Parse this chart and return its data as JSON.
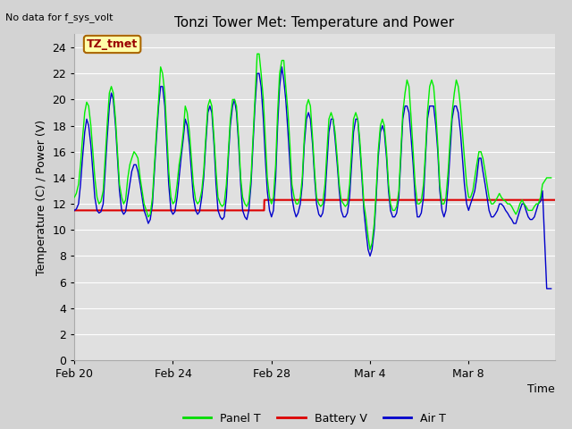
{
  "title": "Tonzi Tower Met: Temperature and Power",
  "top_left_note": "No data for f_sys_volt",
  "ylabel": "Temperature (C) / Power (V)",
  "xlabel": "Time",
  "xlim_days": [
    0,
    19.5
  ],
  "ylim": [
    0,
    25
  ],
  "yticks": [
    0,
    2,
    4,
    6,
    8,
    10,
    12,
    14,
    16,
    18,
    20,
    22,
    24
  ],
  "xtick_labels": [
    "Feb 20",
    "Feb 24",
    "Feb 28",
    "Mar 4",
    "Mar 8"
  ],
  "xtick_positions": [
    0,
    4,
    8,
    12,
    16
  ],
  "label_box_text": "TZ_tmet",
  "legend_entries": [
    "Panel T",
    "Battery V",
    "Air T"
  ],
  "legend_colors": [
    "#00dd00",
    "#dd0000",
    "#0000cc"
  ],
  "fig_facecolor": "#d3d3d3",
  "plot_facecolor": "#e8e8e8",
  "panel_t_color": "#00ee00",
  "battery_v_color": "#dd0000",
  "air_t_color": "#0000cc",
  "panel_t": {
    "x": [
      0.0,
      0.08,
      0.17,
      0.25,
      0.33,
      0.42,
      0.5,
      0.58,
      0.67,
      0.75,
      0.83,
      0.92,
      1.0,
      1.08,
      1.17,
      1.25,
      1.33,
      1.42,
      1.5,
      1.58,
      1.67,
      1.75,
      1.83,
      1.92,
      2.0,
      2.08,
      2.17,
      2.25,
      2.33,
      2.42,
      2.5,
      2.58,
      2.67,
      2.75,
      2.83,
      2.92,
      3.0,
      3.08,
      3.17,
      3.25,
      3.33,
      3.42,
      3.5,
      3.58,
      3.67,
      3.75,
      3.83,
      3.92,
      4.0,
      4.08,
      4.17,
      4.25,
      4.33,
      4.42,
      4.5,
      4.58,
      4.67,
      4.75,
      4.83,
      4.92,
      5.0,
      5.08,
      5.17,
      5.25,
      5.33,
      5.42,
      5.5,
      5.58,
      5.67,
      5.75,
      5.83,
      5.92,
      6.0,
      6.08,
      6.17,
      6.25,
      6.33,
      6.42,
      6.5,
      6.58,
      6.67,
      6.75,
      6.83,
      6.92,
      7.0,
      7.08,
      7.17,
      7.25,
      7.33,
      7.42,
      7.5,
      7.58,
      7.67,
      7.75,
      7.83,
      7.92,
      8.0,
      8.08,
      8.17,
      8.25,
      8.33,
      8.42,
      8.5,
      8.58,
      8.67,
      8.75,
      8.83,
      8.92,
      9.0,
      9.08,
      9.17,
      9.25,
      9.33,
      9.42,
      9.5,
      9.58,
      9.67,
      9.75,
      9.83,
      9.92,
      10.0,
      10.08,
      10.17,
      10.25,
      10.33,
      10.42,
      10.5,
      10.58,
      10.67,
      10.75,
      10.83,
      10.92,
      11.0,
      11.08,
      11.17,
      11.25,
      11.33,
      11.42,
      11.5,
      11.58,
      11.67,
      11.75,
      11.83,
      11.92,
      12.0,
      12.08,
      12.17,
      12.25,
      12.33,
      12.42,
      12.5,
      12.58,
      12.67,
      12.75,
      12.83,
      12.92,
      13.0,
      13.08,
      13.17,
      13.25,
      13.33,
      13.42,
      13.5,
      13.58,
      13.67,
      13.75,
      13.83,
      13.92,
      14.0,
      14.08,
      14.17,
      14.25,
      14.33,
      14.42,
      14.5,
      14.58,
      14.67,
      14.75,
      14.83,
      14.92,
      15.0,
      15.08,
      15.17,
      15.25,
      15.33,
      15.42,
      15.5,
      15.58,
      15.67,
      15.75,
      15.83,
      15.92,
      16.0,
      16.08,
      16.17,
      16.25,
      16.33,
      16.42,
      16.5,
      16.58,
      16.67,
      16.75,
      16.83,
      16.92,
      17.0,
      17.08,
      17.17,
      17.25,
      17.33,
      17.42,
      17.5,
      17.58,
      17.67,
      17.75,
      17.83,
      17.92,
      18.0,
      18.08,
      18.17,
      18.25,
      18.33,
      18.42,
      18.5,
      18.58,
      18.67,
      18.75,
      18.83,
      18.92,
      19.0,
      19.17,
      19.35
    ],
    "y": [
      12.5,
      12.8,
      13.5,
      15.0,
      17.0,
      19.0,
      19.8,
      19.5,
      18.0,
      16.0,
      14.0,
      12.5,
      12.0,
      12.2,
      13.0,
      15.5,
      18.0,
      20.5,
      21.0,
      20.5,
      18.5,
      16.0,
      13.5,
      12.5,
      12.0,
      12.3,
      14.0,
      15.0,
      15.5,
      16.0,
      15.8,
      15.5,
      14.0,
      13.0,
      12.0,
      11.5,
      11.0,
      11.2,
      12.5,
      15.0,
      17.5,
      20.0,
      22.5,
      22.0,
      20.5,
      17.5,
      14.5,
      12.5,
      12.0,
      12.2,
      13.5,
      15.0,
      16.0,
      17.5,
      19.5,
      19.0,
      17.5,
      15.5,
      13.5,
      12.3,
      12.0,
      12.2,
      13.0,
      14.5,
      17.0,
      19.5,
      20.0,
      19.5,
      17.0,
      14.5,
      12.5,
      12.0,
      11.8,
      12.0,
      13.5,
      16.0,
      18.5,
      20.0,
      20.0,
      19.5,
      17.0,
      14.0,
      12.5,
      12.0,
      11.8,
      12.2,
      14.0,
      17.0,
      20.0,
      23.5,
      23.5,
      22.0,
      20.0,
      17.0,
      14.0,
      12.5,
      12.0,
      12.5,
      15.0,
      19.0,
      22.0,
      23.0,
      23.0,
      21.0,
      19.0,
      16.5,
      13.5,
      12.5,
      12.0,
      12.0,
      12.5,
      14.0,
      17.0,
      19.5,
      20.0,
      19.5,
      17.0,
      14.5,
      12.5,
      12.0,
      11.8,
      12.0,
      13.5,
      16.0,
      18.5,
      19.0,
      18.5,
      17.5,
      15.5,
      13.5,
      12.3,
      12.0,
      11.8,
      12.0,
      13.5,
      16.0,
      18.5,
      19.0,
      18.5,
      17.0,
      14.5,
      12.0,
      11.0,
      9.5,
      8.5,
      9.0,
      10.5,
      13.0,
      16.0,
      18.0,
      18.5,
      18.0,
      16.0,
      13.5,
      12.0,
      11.5,
      11.5,
      11.8,
      13.0,
      16.0,
      19.0,
      20.5,
      21.5,
      21.0,
      18.5,
      16.0,
      13.5,
      12.0,
      12.0,
      12.2,
      13.5,
      16.0,
      19.0,
      21.0,
      21.5,
      21.0,
      19.0,
      16.5,
      13.5,
      12.0,
      12.0,
      12.5,
      14.5,
      17.0,
      19.0,
      20.5,
      21.5,
      21.0,
      19.5,
      17.5,
      15.5,
      13.5,
      12.5,
      12.5,
      13.0,
      14.0,
      15.0,
      16.0,
      16.0,
      15.5,
      14.5,
      13.5,
      12.5,
      12.0,
      12.0,
      12.2,
      12.5,
      12.8,
      12.5,
      12.3,
      12.2,
      12.0,
      12.0,
      11.8,
      11.5,
      11.2,
      11.5,
      12.0,
      12.3,
      12.0,
      11.8,
      11.5,
      11.5,
      11.5,
      11.8,
      12.0,
      12.0,
      12.5,
      13.5,
      14.0,
      14.0
    ]
  },
  "air_t": {
    "x": [
      0.0,
      0.08,
      0.17,
      0.25,
      0.33,
      0.42,
      0.5,
      0.58,
      0.67,
      0.75,
      0.83,
      0.92,
      1.0,
      1.08,
      1.17,
      1.25,
      1.33,
      1.42,
      1.5,
      1.58,
      1.67,
      1.75,
      1.83,
      1.92,
      2.0,
      2.08,
      2.17,
      2.25,
      2.33,
      2.42,
      2.5,
      2.58,
      2.67,
      2.75,
      2.83,
      2.92,
      3.0,
      3.08,
      3.17,
      3.25,
      3.33,
      3.42,
      3.5,
      3.58,
      3.67,
      3.75,
      3.83,
      3.92,
      4.0,
      4.08,
      4.17,
      4.25,
      4.33,
      4.42,
      4.5,
      4.58,
      4.67,
      4.75,
      4.83,
      4.92,
      5.0,
      5.08,
      5.17,
      5.25,
      5.33,
      5.42,
      5.5,
      5.58,
      5.67,
      5.75,
      5.83,
      5.92,
      6.0,
      6.08,
      6.17,
      6.25,
      6.33,
      6.42,
      6.5,
      6.58,
      6.67,
      6.75,
      6.83,
      6.92,
      7.0,
      7.08,
      7.17,
      7.25,
      7.33,
      7.42,
      7.5,
      7.58,
      7.67,
      7.75,
      7.83,
      7.92,
      8.0,
      8.08,
      8.17,
      8.25,
      8.33,
      8.42,
      8.5,
      8.58,
      8.67,
      8.75,
      8.83,
      8.92,
      9.0,
      9.08,
      9.17,
      9.25,
      9.33,
      9.42,
      9.5,
      9.58,
      9.67,
      9.75,
      9.83,
      9.92,
      10.0,
      10.08,
      10.17,
      10.25,
      10.33,
      10.42,
      10.5,
      10.58,
      10.67,
      10.75,
      10.83,
      10.92,
      11.0,
      11.08,
      11.17,
      11.25,
      11.33,
      11.42,
      11.5,
      11.58,
      11.67,
      11.75,
      11.83,
      11.92,
      12.0,
      12.08,
      12.17,
      12.25,
      12.33,
      12.42,
      12.5,
      12.58,
      12.67,
      12.75,
      12.83,
      12.92,
      13.0,
      13.08,
      13.17,
      13.25,
      13.33,
      13.42,
      13.5,
      13.58,
      13.67,
      13.75,
      13.83,
      13.92,
      14.0,
      14.08,
      14.17,
      14.25,
      14.33,
      14.42,
      14.5,
      14.58,
      14.67,
      14.75,
      14.83,
      14.92,
      15.0,
      15.08,
      15.17,
      15.25,
      15.33,
      15.42,
      15.5,
      15.58,
      15.67,
      15.75,
      15.83,
      15.92,
      16.0,
      16.08,
      16.17,
      16.25,
      16.33,
      16.42,
      16.5,
      16.58,
      16.67,
      16.75,
      16.83,
      16.92,
      17.0,
      17.08,
      17.17,
      17.25,
      17.33,
      17.42,
      17.5,
      17.58,
      17.67,
      17.75,
      17.83,
      17.92,
      18.0,
      18.08,
      18.17,
      18.25,
      18.33,
      18.42,
      18.5,
      18.58,
      18.67,
      18.75,
      18.83,
      18.92,
      19.0,
      19.17,
      19.35
    ],
    "y": [
      11.5,
      11.6,
      12.0,
      13.5,
      15.5,
      17.5,
      18.5,
      18.0,
      16.5,
      14.5,
      12.5,
      11.5,
      11.3,
      11.4,
      12.0,
      14.5,
      17.0,
      19.5,
      20.5,
      20.0,
      18.0,
      15.5,
      13.0,
      11.5,
      11.2,
      11.4,
      12.5,
      13.5,
      14.5,
      15.0,
      15.0,
      14.5,
      13.5,
      12.5,
      11.5,
      11.0,
      10.5,
      10.8,
      12.0,
      14.5,
      17.0,
      19.5,
      21.0,
      21.0,
      19.5,
      16.5,
      13.5,
      11.5,
      11.2,
      11.4,
      12.5,
      14.0,
      15.5,
      17.0,
      18.5,
      18.0,
      16.5,
      14.5,
      12.5,
      11.5,
      11.2,
      11.4,
      12.5,
      14.0,
      16.5,
      19.0,
      19.5,
      19.0,
      16.5,
      13.5,
      11.5,
      11.0,
      10.8,
      11.0,
      12.5,
      15.5,
      18.0,
      19.5,
      20.0,
      19.0,
      16.5,
      13.5,
      11.5,
      11.0,
      10.8,
      11.5,
      13.5,
      16.5,
      19.5,
      22.0,
      22.0,
      21.0,
      18.5,
      15.5,
      13.0,
      11.5,
      11.0,
      11.5,
      14.0,
      18.0,
      21.0,
      22.5,
      21.5,
      20.0,
      17.5,
      15.0,
      12.5,
      11.5,
      11.0,
      11.3,
      12.0,
      13.5,
      16.5,
      18.5,
      19.0,
      18.5,
      16.5,
      14.0,
      12.0,
      11.2,
      11.0,
      11.3,
      12.5,
      15.0,
      17.5,
      18.5,
      18.5,
      17.0,
      15.0,
      13.0,
      11.5,
      11.0,
      11.0,
      11.3,
      12.5,
      15.0,
      17.5,
      18.5,
      18.5,
      16.5,
      14.0,
      11.5,
      10.0,
      8.5,
      8.0,
      8.5,
      10.0,
      12.5,
      15.5,
      17.5,
      18.0,
      17.5,
      15.5,
      13.0,
      11.5,
      11.0,
      11.0,
      11.3,
      12.5,
      15.5,
      18.5,
      19.5,
      19.5,
      19.0,
      17.0,
      15.0,
      12.5,
      11.0,
      11.0,
      11.3,
      12.5,
      15.5,
      18.5,
      19.5,
      19.5,
      19.5,
      18.0,
      16.0,
      13.0,
      11.5,
      11.0,
      11.5,
      13.5,
      16.0,
      18.5,
      19.5,
      19.5,
      19.0,
      17.5,
      15.5,
      13.5,
      12.0,
      11.5,
      12.0,
      12.5,
      13.0,
      14.0,
      15.5,
      15.5,
      14.5,
      13.5,
      12.5,
      11.5,
      11.0,
      11.0,
      11.2,
      11.5,
      12.0,
      12.0,
      11.8,
      11.5,
      11.3,
      11.0,
      10.8,
      10.5,
      10.5,
      11.0,
      11.5,
      12.0,
      12.0,
      11.5,
      11.0,
      10.8,
      10.8,
      11.0,
      11.5,
      12.0,
      12.2,
      13.0,
      5.5,
      5.5
    ]
  },
  "battery_v": {
    "x": [
      0.0,
      7.7,
      7.71,
      19.5
    ],
    "y": [
      11.5,
      11.5,
      12.3,
      12.3
    ]
  }
}
